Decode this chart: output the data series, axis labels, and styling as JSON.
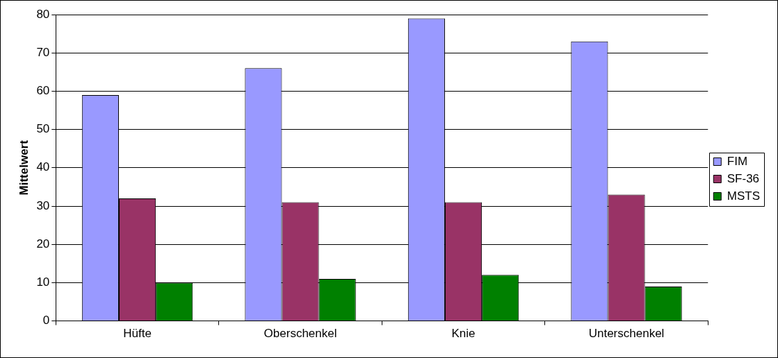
{
  "chart_data": {
    "type": "bar",
    "ylabel": "Mittelwert",
    "categories": [
      "Hüfte",
      "Oberschenkel",
      "Knie",
      "Unterschenkel"
    ],
    "series": [
      {
        "name": "FIM",
        "color": "#9999ff",
        "values": [
          59,
          66,
          79,
          73
        ]
      },
      {
        "name": "SF-36",
        "color": "#993366",
        "values": [
          32,
          31,
          31,
          33
        ]
      },
      {
        "name": "MSTS",
        "color": "#008000",
        "values": [
          10,
          11,
          12,
          9
        ]
      }
    ],
    "ylim": [
      0,
      80
    ],
    "yticks": [
      0,
      10,
      20,
      30,
      40,
      50,
      60,
      70,
      80
    ],
    "grid": "y",
    "legend": "right"
  }
}
